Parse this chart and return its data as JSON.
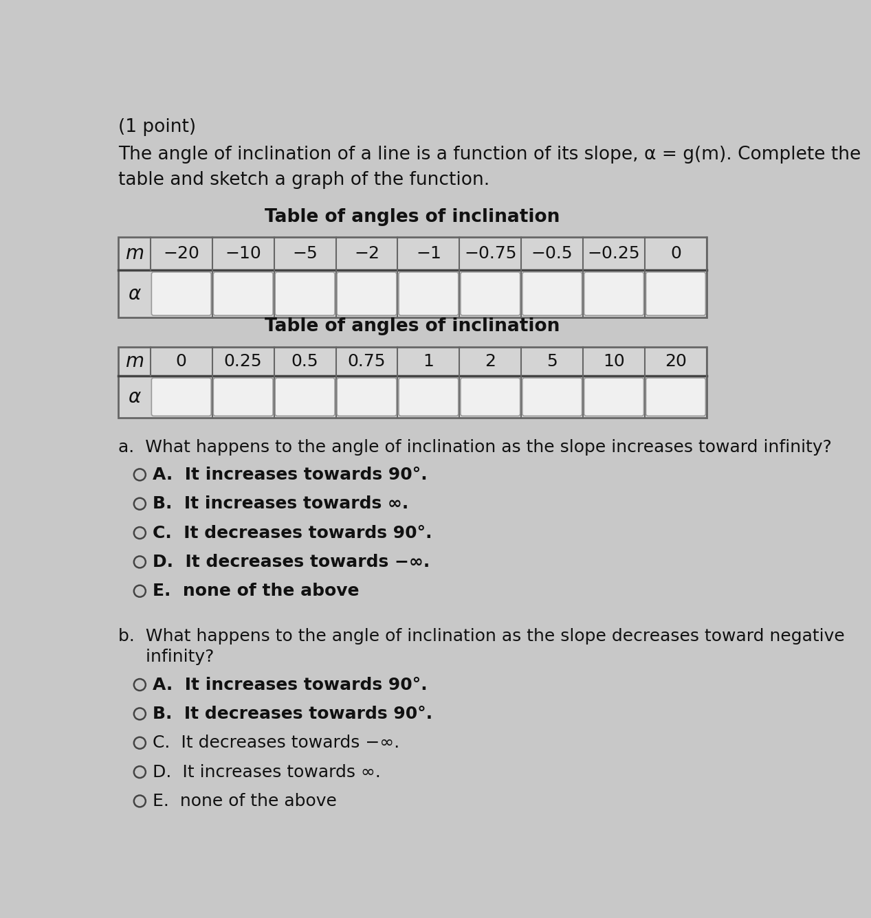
{
  "title_point": "(1 point)",
  "intro_line1": "The angle of inclination of a line is a function of its slope, α = g(m). Complete the",
  "intro_line2": "table and sketch a graph of the function.",
  "table1_title": "Table of angles of inclination",
  "table1_m_values": [
    "−20",
    "−10",
    "−5",
    "−2",
    "−1",
    "−0.75",
    "−0.5",
    "−0.25",
    "0"
  ],
  "table2_title": "Table of angles of inclination",
  "table2_m_values": [
    "0",
    "0.25",
    "0.5",
    "0.75",
    "1",
    "2",
    "5",
    "10",
    "20"
  ],
  "question_a_intro": "a.  What happens to the angle of inclination as the slope increases toward infinity?",
  "question_a_options": [
    "○A.  It increases towards 90°.",
    "○B.  It increases towards ∞.",
    "○C.  It decreases towards 90°.",
    "○D.  It decreases towards −∞.",
    "○E.  none of the above"
  ],
  "question_b_intro1": "b.  What happens to the angle of inclination as the slope decreases toward negative",
  "question_b_intro2": "     infinity?",
  "question_b_options": [
    "○A.  It increases towards 90°.",
    "○B.  It decreases towards 90°.",
    "○C.  It decreases towards −∞.",
    "○D.  It increases towards ∞.",
    "○E.  none of the above"
  ],
  "bg_color": "#c8c8c8",
  "table_bg": "#d4d4d4",
  "cell_inner_bg": "#f5f5f5",
  "text_color": "#111111",
  "font_size_intro": 19,
  "font_size_table_title": 19,
  "font_size_table_header": 18,
  "font_size_question": 18,
  "font_size_option": 18
}
